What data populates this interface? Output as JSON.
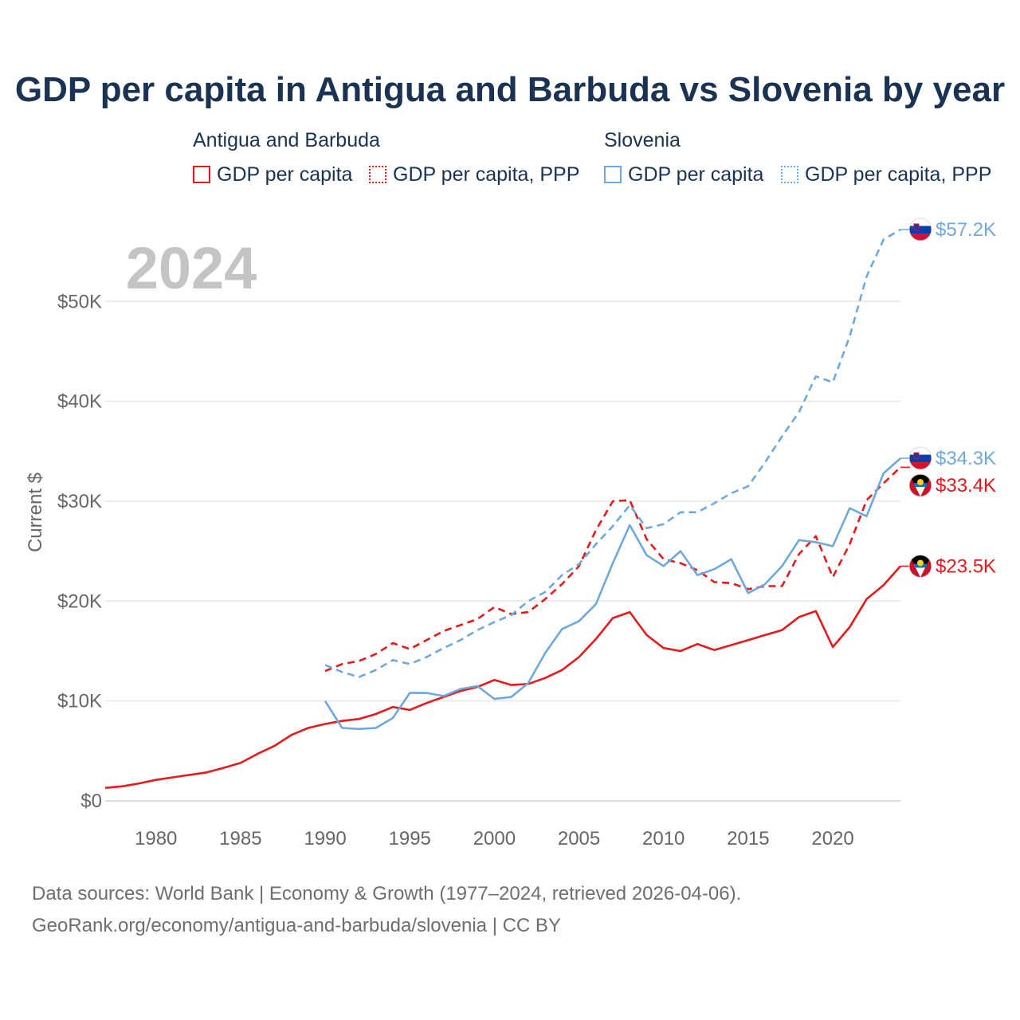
{
  "chart_data": {
    "type": "line",
    "title": "GDP per capita in Antigua and Barbuda vs Slovenia by year",
    "year_label": "2024",
    "ylabel": "Current $",
    "xlabel": "",
    "ylim": [
      0,
      58000
    ],
    "xlim": [
      1977,
      2024
    ],
    "y_ticks": [
      {
        "value": 0,
        "label": "$0"
      },
      {
        "value": 10000,
        "label": "$10K"
      },
      {
        "value": 20000,
        "label": "$20K"
      },
      {
        "value": 30000,
        "label": "$30K"
      },
      {
        "value": 40000,
        "label": "$40K"
      },
      {
        "value": 50000,
        "label": "$50K"
      }
    ],
    "x_ticks": [
      {
        "value": 1980,
        "label": "1980"
      },
      {
        "value": 1985,
        "label": "1985"
      },
      {
        "value": 1990,
        "label": "1990"
      },
      {
        "value": 1995,
        "label": "1995"
      },
      {
        "value": 2000,
        "label": "2000"
      },
      {
        "value": 2005,
        "label": "2005"
      },
      {
        "value": 2010,
        "label": "2010"
      },
      {
        "value": 2015,
        "label": "2015"
      },
      {
        "value": 2020,
        "label": "2020"
      }
    ],
    "grid": true,
    "legend": {
      "groups": [
        {
          "name": "Antigua and Barbuda",
          "items": [
            "GDP per capita",
            "GDP per capita, PPP"
          ]
        },
        {
          "name": "Slovenia",
          "items": [
            "GDP per capita",
            "GDP per capita, PPP"
          ]
        }
      ],
      "placement": "top"
    },
    "series": [
      {
        "name": "GDP per capita",
        "country": "Antigua and Barbuda",
        "color": "#e8191c",
        "dashed": false,
        "end_label": "$23.5K",
        "flag": "antigua-flag",
        "x": [
          1977,
          1978,
          1979,
          1980,
          1981,
          1982,
          1983,
          1984,
          1985,
          1986,
          1987,
          1988,
          1989,
          1990,
          1991,
          1992,
          1993,
          1994,
          1995,
          1996,
          1997,
          1998,
          1999,
          2000,
          2001,
          2002,
          2003,
          2004,
          2005,
          2006,
          2007,
          2008,
          2009,
          2010,
          2011,
          2012,
          2013,
          2014,
          2015,
          2016,
          2017,
          2018,
          2019,
          2020,
          2021,
          2022,
          2023,
          2024
        ],
        "values": [
          1300,
          1450,
          1750,
          2100,
          2350,
          2600,
          2850,
          3300,
          3800,
          4700,
          5500,
          6600,
          7300,
          7700,
          8000,
          8200,
          8700,
          9400,
          9100,
          9800,
          10400,
          11000,
          11400,
          12100,
          11600,
          11700,
          12300,
          13100,
          14400,
          16200,
          18300,
          18900,
          16600,
          15300,
          15000,
          15700,
          15100,
          15600,
          16100,
          16600,
          17100,
          18400,
          19000,
          15400,
          17400,
          20200,
          21600,
          23500
        ]
      },
      {
        "name": "GDP per capita, PPP",
        "country": "Antigua and Barbuda",
        "color": "#e8191c",
        "dashed": true,
        "end_label": "$33.4K",
        "flag": "antigua-flag",
        "x": [
          1990,
          1991,
          1992,
          1993,
          1994,
          1995,
          1996,
          1997,
          1998,
          1999,
          2000,
          2001,
          2002,
          2003,
          2004,
          2005,
          2006,
          2007,
          2008,
          2009,
          2010,
          2011,
          2012,
          2013,
          2014,
          2015,
          2016,
          2017,
          2018,
          2019,
          2020,
          2021,
          2022,
          2023,
          2024
        ],
        "values": [
          13000,
          13700,
          14000,
          14700,
          15800,
          15200,
          16100,
          17000,
          17600,
          18200,
          19400,
          18700,
          18900,
          20200,
          21700,
          23500,
          27100,
          30000,
          30100,
          26200,
          24200,
          23800,
          23100,
          21900,
          21800,
          21200,
          21500,
          21500,
          24700,
          26500,
          22400,
          25700,
          30100,
          31800,
          33400
        ]
      },
      {
        "name": "GDP per capita",
        "country": "Slovenia",
        "color": "#6fa8dc",
        "dashed": false,
        "end_label": "$34.3K",
        "flag": "slovenia-flag",
        "x": [
          1990,
          1991,
          1992,
          1993,
          1994,
          1995,
          1996,
          1997,
          1998,
          1999,
          2000,
          2001,
          2002,
          2003,
          2004,
          2005,
          2006,
          2007,
          2008,
          2009,
          2010,
          2011,
          2012,
          2013,
          2014,
          2015,
          2016,
          2017,
          2018,
          2019,
          2020,
          2021,
          2022,
          2023,
          2024
        ],
        "values": [
          10000,
          7300,
          7200,
          7300,
          8300,
          10800,
          10800,
          10500,
          11200,
          11500,
          10200,
          10400,
          11800,
          14800,
          17200,
          18000,
          19700,
          23800,
          27600,
          24600,
          23500,
          25000,
          22600,
          23200,
          24200,
          20800,
          21700,
          23500,
          26100,
          25900,
          25500,
          29300,
          28500,
          32800,
          34300
        ]
      },
      {
        "name": "GDP per capita, PPP",
        "country": "Slovenia",
        "color": "#6fa8dc",
        "dashed": true,
        "end_label": "$57.2K",
        "flag": "slovenia-flag",
        "x": [
          1990,
          1991,
          1992,
          1993,
          1994,
          1995,
          1996,
          1997,
          1998,
          1999,
          2000,
          2001,
          2002,
          2003,
          2004,
          2005,
          2006,
          2007,
          2008,
          2009,
          2010,
          2011,
          2012,
          2013,
          2014,
          2015,
          2016,
          2017,
          2018,
          2019,
          2020,
          2021,
          2022,
          2023,
          2024
        ],
        "values": [
          13600,
          12900,
          12400,
          13100,
          14100,
          13700,
          14400,
          15300,
          16100,
          17100,
          17900,
          18600,
          20000,
          20900,
          22600,
          23700,
          25700,
          27500,
          29600,
          27300,
          27700,
          28900,
          28900,
          29800,
          30800,
          31500,
          33900,
          36500,
          38900,
          42500,
          41900,
          46500,
          52500,
          56200,
          57200
        ]
      }
    ]
  },
  "footer": {
    "line1": "Data sources: World Bank | Economy & Growth (1977–2024, retrieved 2026-04-06).",
    "line2": "GeoRank.org/economy/antigua-and-barbuda/slovenia | CC BY"
  },
  "colors": {
    "antigua": "#e8191c",
    "slovenia": "#6fa8dc",
    "title": "#1a3353",
    "axis_text": "#666666",
    "year_watermark": "#c4c4c4",
    "grid": "#e6e6e6"
  }
}
